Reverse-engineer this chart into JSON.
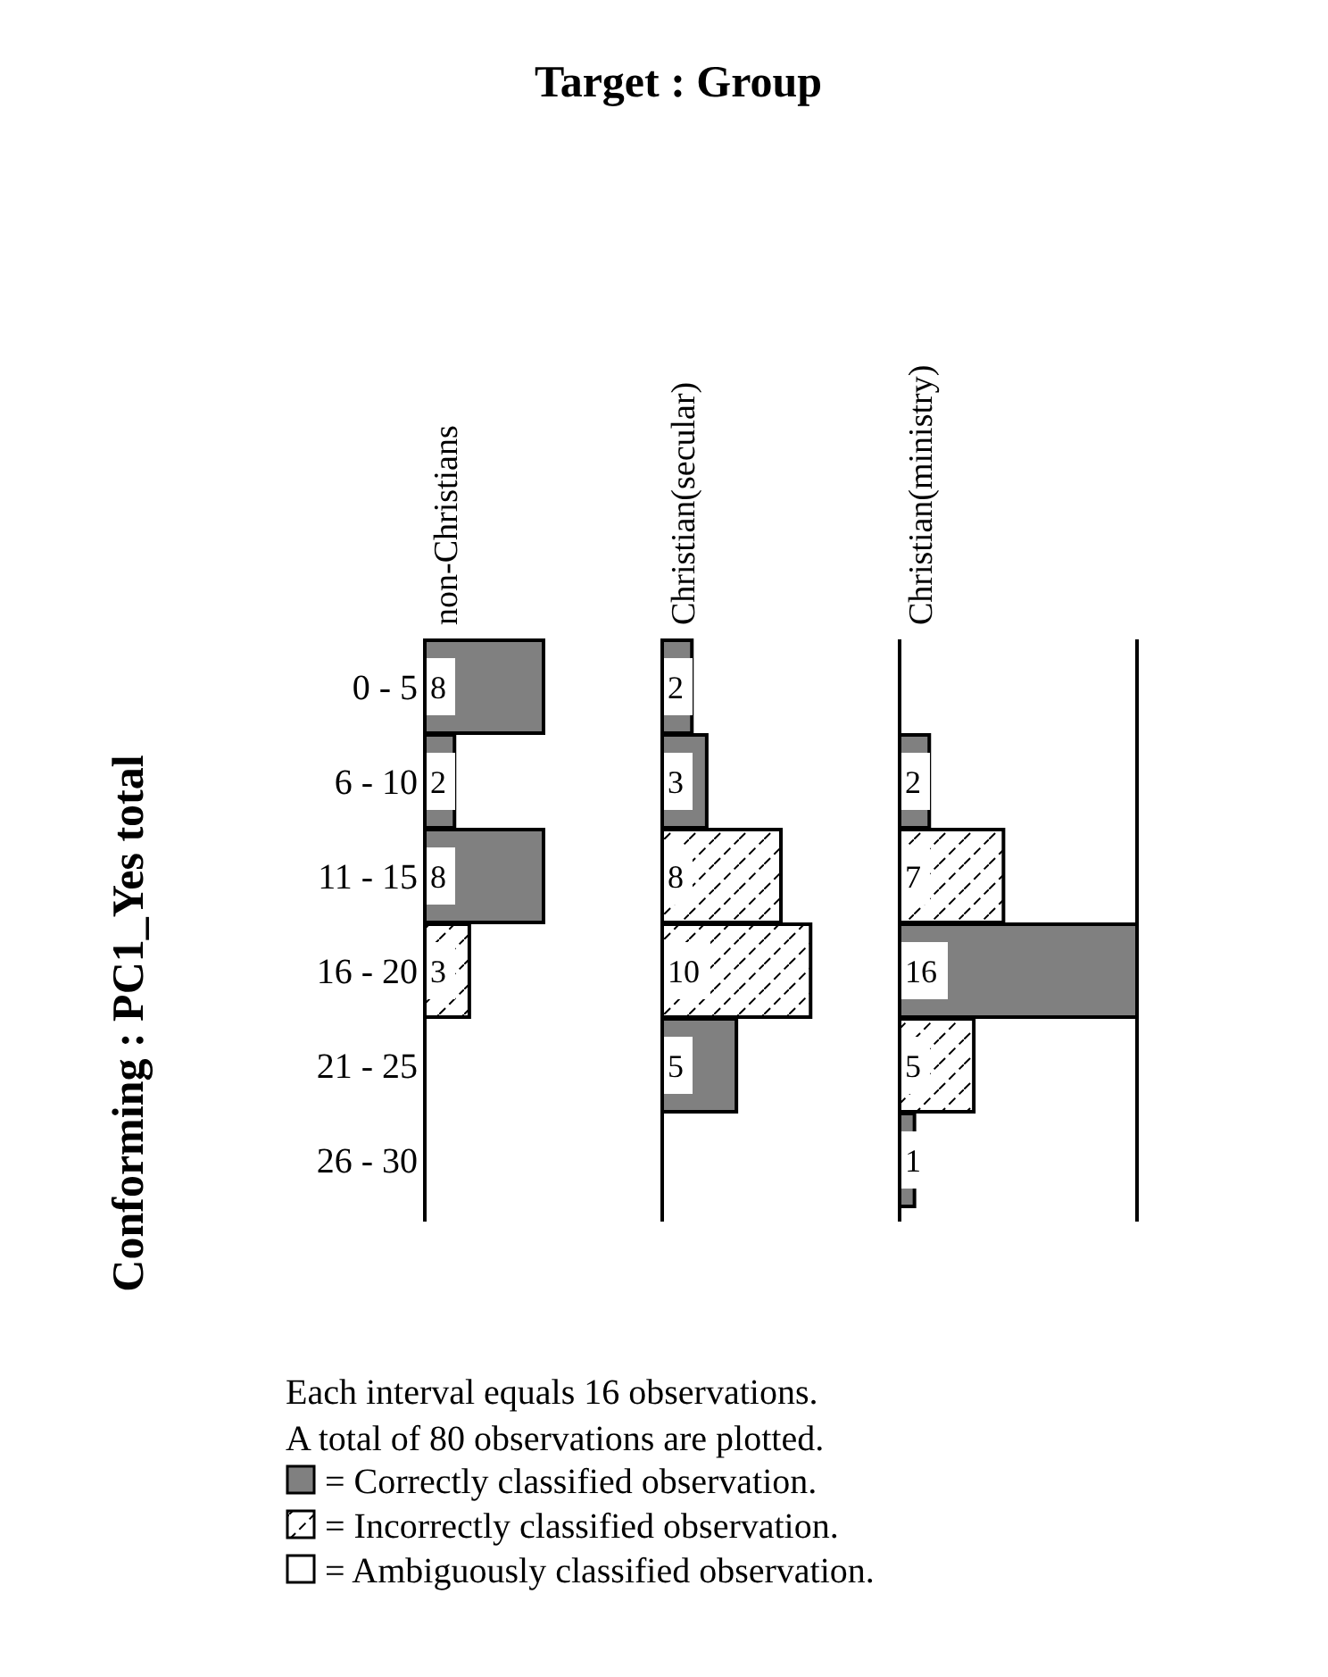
{
  "chart_data": [
    {
      "type": "bar",
      "orientation": "horizontal",
      "title": "non-Christians",
      "ylabel": "Conforming : PC1_Yes total",
      "categories": [
        "0 - 5",
        "6 - 10",
        "11 - 15",
        "16 - 20",
        "21 - 25",
        "26 - 30"
      ],
      "data_labels": true,
      "legend": "bottom",
      "annotations": [
        "Target : Group",
        "Each interval equals 16 observations.",
        "A total of 80 observations are plotted."
      ],
      "series": [
        {
          "name": "= Correctly classified observation.",
          "color": "#808080",
          "values": [
            8,
            2,
            8,
            null,
            null,
            null
          ]
        },
        {
          "name": "= Incorrectly classified observation.",
          "color": "#ffffff",
          "values": [
            null,
            null,
            null,
            3,
            null,
            null
          ]
        },
        {
          "name": "= Ambiguously classified observation.",
          "color": "#ffffff",
          "values": [
            null,
            null,
            null,
            null,
            null,
            null
          ]
        }
      ]
    },
    {
      "type": "bar",
      "orientation": "horizontal",
      "title": "Christian(secular)",
      "categories": [
        null,
        null,
        null,
        null,
        null,
        null
      ],
      "data_labels": true,
      "series": [
        {
          "color": "#808080",
          "values": [
            2,
            3,
            null,
            null,
            5,
            null
          ]
        },
        {
          "color": "#ffffff",
          "values": [
            null,
            null,
            8,
            10,
            null,
            null
          ]
        }
      ]
    },
    {
      "type": "bar",
      "orientation": "horizontal",
      "title": "Christian(ministry)",
      "categories": [
        null,
        null,
        null,
        null,
        null,
        null
      ],
      "xlim": [
        0,
        16
      ],
      "data_labels": true,
      "series": [
        {
          "color": "#808080",
          "values": [
            null,
            2,
            null,
            16,
            null,
            1
          ]
        },
        {
          "color": "#ffffff",
          "values": [
            null,
            null,
            7,
            null,
            5,
            null
          ]
        }
      ]
    }
  ]
}
